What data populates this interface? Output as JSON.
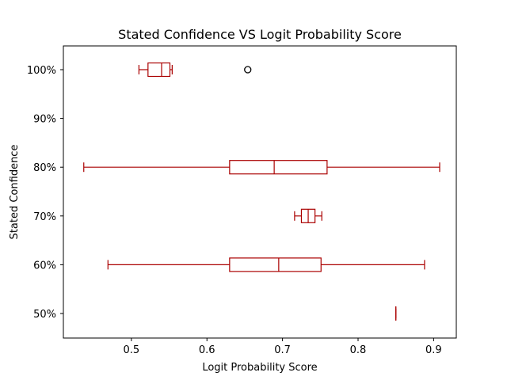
{
  "chart_data": {
    "type": "boxplot",
    "orientation": "horizontal",
    "title": "Stated Confidence VS Logit Probability Score",
    "xlabel": "Logit Probability Score",
    "ylabel": "Stated Confidence",
    "xlim": [
      0.41,
      0.93
    ],
    "xticks": [
      0.5,
      0.6,
      0.7,
      0.8,
      0.9
    ],
    "xtick_labels": [
      "0.5",
      "0.6",
      "0.7",
      "0.8",
      "0.9"
    ],
    "categories": [
      "50%",
      "60%",
      "70%",
      "80%",
      "90%",
      "100%"
    ],
    "color": "#aa0000",
    "flier_color": "#000000",
    "boxes": [
      {
        "label": "50%",
        "whislo": 0.85,
        "q1": 0.85,
        "med": 0.85,
        "q3": 0.85,
        "whishi": 0.85,
        "fliers": []
      },
      {
        "label": "60%",
        "whislo": 0.469,
        "q1": 0.63,
        "med": 0.695,
        "q3": 0.751,
        "whishi": 0.888,
        "fliers": []
      },
      {
        "label": "70%",
        "whislo": 0.716,
        "q1": 0.725,
        "med": 0.734,
        "q3": 0.743,
        "whishi": 0.752,
        "fliers": []
      },
      {
        "label": "80%",
        "whislo": 0.437,
        "q1": 0.63,
        "med": 0.689,
        "q3": 0.759,
        "whishi": 0.908,
        "fliers": []
      },
      {
        "label": "90%",
        "empty": true
      },
      {
        "label": "100%",
        "whislo": 0.51,
        "q1": 0.522,
        "med": 0.54,
        "q3": 0.551,
        "whishi": 0.554,
        "fliers": [
          0.654
        ]
      }
    ]
  }
}
